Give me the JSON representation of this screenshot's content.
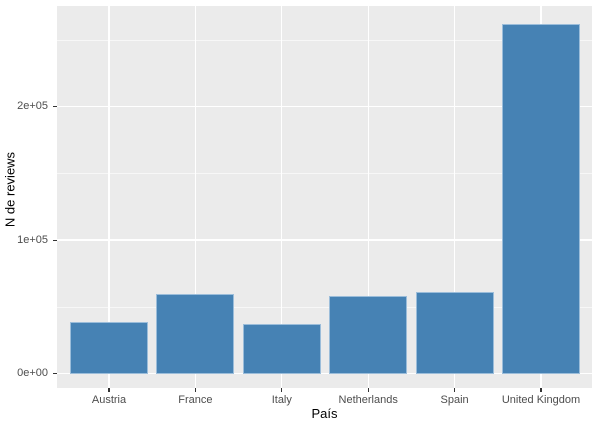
{
  "chart_data": {
    "type": "bar",
    "title": "",
    "categories": [
      "Austria",
      "France",
      "Italy",
      "Netherlands",
      "Spain",
      "United Kingdom"
    ],
    "values": [
      39000,
      60000,
      37000,
      58000,
      61000,
      262000
    ],
    "xlabel": "País",
    "ylabel": "N de reviews",
    "ylim": [
      0,
      275000
    ],
    "yticks": [
      {
        "value": 0,
        "label": "0e+00"
      },
      {
        "value": 100000,
        "label": "1e+05"
      },
      {
        "value": 200000,
        "label": "2e+05"
      }
    ],
    "yticks_minor": [
      50000,
      150000,
      250000
    ],
    "grid": "on",
    "legend_position": "none",
    "colors": {
      "bar_fill": "#4682B4",
      "panel_background": "#EBEBEB",
      "gridline": "#FFFFFF",
      "tick_text": "#4D4D4D",
      "axis_title_text": "#000000",
      "tick_mark": "#333333",
      "figure_background": "#FFFFFF"
    }
  }
}
